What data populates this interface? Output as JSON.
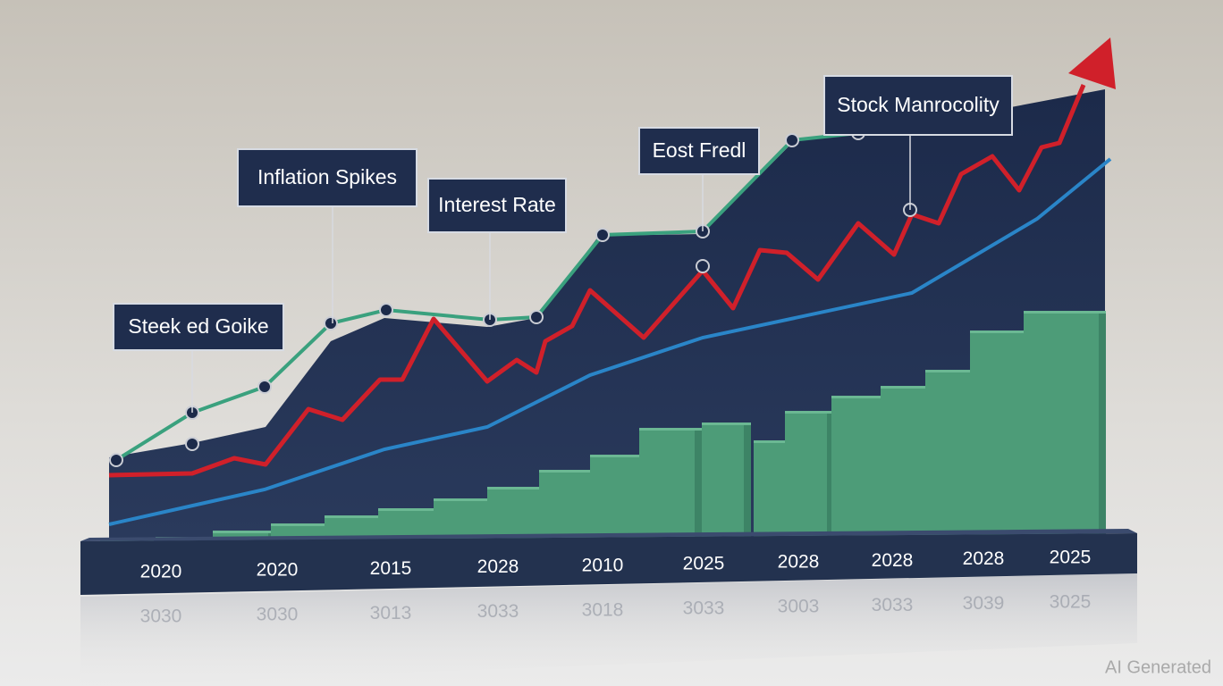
{
  "annotations": [
    "Steek ed Goike",
    "Inflation Spikes",
    "Interest Rate",
    "Eost Fredl",
    "Stock Manrocolity"
  ],
  "x_labels": [
    "2020",
    "2020",
    "2015",
    "2028",
    "2010",
    "2025",
    "2028",
    "2028",
    "2028",
    "2025"
  ],
  "reflection_labels": [
    "3030",
    "3030",
    "3013",
    "3033",
    "3018",
    "3033",
    "3003",
    "3033",
    "3039",
    "3025"
  ],
  "watermark": "AI Generated"
}
